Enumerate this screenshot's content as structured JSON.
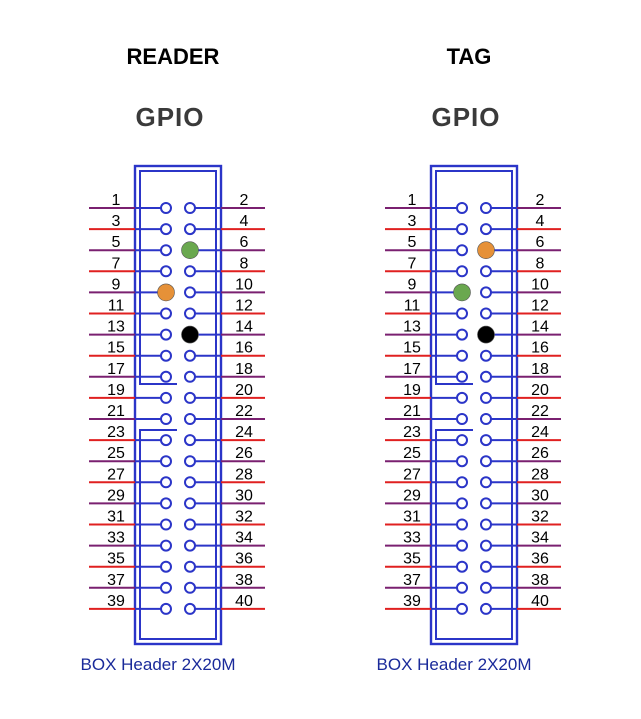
{
  "panels": [
    {
      "title": "READER",
      "header_label": "GPIO",
      "caption": "BOX Header 2X20M",
      "markers": [
        {
          "pin": 6,
          "color": "#6aa84f",
          "name": "green"
        },
        {
          "pin": 9,
          "color": "#e69138",
          "name": "orange"
        },
        {
          "pin": 14,
          "color": "#000000",
          "name": "black"
        }
      ]
    },
    {
      "title": "TAG",
      "header_label": "GPIO",
      "caption": "BOX Header 2X20M",
      "markers": [
        {
          "pin": 6,
          "color": "#e69138",
          "name": "orange"
        },
        {
          "pin": 9,
          "color": "#6aa84f",
          "name": "green"
        },
        {
          "pin": 14,
          "color": "#000000",
          "name": "black"
        }
      ]
    }
  ],
  "pins": {
    "odd": [
      "1",
      "3",
      "5",
      "7",
      "9",
      "11",
      "13",
      "15",
      "17",
      "19",
      "21",
      "23",
      "25",
      "27",
      "29",
      "31",
      "33",
      "35",
      "37",
      "39"
    ],
    "even": [
      "2",
      "4",
      "6",
      "8",
      "10",
      "12",
      "14",
      "16",
      "18",
      "20",
      "22",
      "24",
      "26",
      "28",
      "30",
      "32",
      "34",
      "36",
      "38",
      "40"
    ]
  },
  "colors": {
    "outline": "#2b35c8",
    "wire_red": "#e02020",
    "wire_purple": "#7a2070",
    "text": "#000000",
    "caption": "#1a2a9a"
  }
}
